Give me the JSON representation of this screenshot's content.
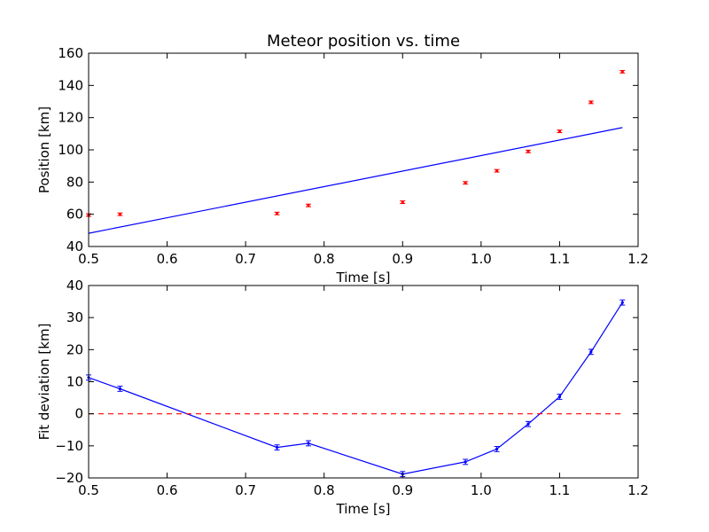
{
  "chart_data": [
    {
      "type": "scatter",
      "title": "Meteor position vs. time",
      "xlabel": "Time [s]",
      "ylabel": "Position [km]",
      "xlim": [
        0.5,
        1.2
      ],
      "ylim": [
        40,
        160
      ],
      "xticks": [
        "0.5",
        "0.6",
        "0.7",
        "0.8",
        "0.9",
        "1.0",
        "1.1",
        "1.2"
      ],
      "yticks": [
        "40",
        "60",
        "80",
        "100",
        "120",
        "140",
        "160"
      ],
      "grid": false,
      "series": [
        {
          "kind": "errorbar-points",
          "color": "#ff0000",
          "x": [
            0.5,
            0.54,
            0.74,
            0.78,
            0.9,
            0.98,
            1.02,
            1.06,
            1.1,
            1.14,
            1.18
          ],
          "y": [
            59.5,
            60,
            60.5,
            65.5,
            67.5,
            79.5,
            87,
            99,
            111.5,
            129.5,
            148.5
          ],
          "yerr": [
            0.8,
            0.8,
            0.8,
            0.8,
            0.8,
            0.8,
            0.8,
            0.8,
            0.8,
            0.8,
            0.8
          ]
        },
        {
          "kind": "line",
          "color": "#0000ff",
          "x": [
            0.5,
            1.18
          ],
          "y": [
            48.2,
            113.8
          ]
        }
      ]
    },
    {
      "type": "line",
      "title": "",
      "xlabel": "Time [s]",
      "ylabel": "Fit deviation [km]",
      "xlim": [
        0.5,
        1.2
      ],
      "ylim": [
        -20,
        40
      ],
      "xticks": [
        "0.5",
        "0.6",
        "0.7",
        "0.8",
        "0.9",
        "1.0",
        "1.1",
        "1.2"
      ],
      "yticks": [
        "−20",
        "−10",
        "0",
        "10",
        "20",
        "30",
        "40"
      ],
      "grid": false,
      "series": [
        {
          "kind": "errorbar-line",
          "color": "#0000ff",
          "x": [
            0.5,
            0.54,
            0.74,
            0.78,
            0.9,
            0.98,
            1.02,
            1.06,
            1.1,
            1.14,
            1.18
          ],
          "y": [
            11.3,
            7.8,
            -10.5,
            -9.2,
            -18.8,
            -15,
            -11,
            -3.2,
            5.3,
            19.3,
            34.7
          ],
          "yerr": [
            0.8,
            0.8,
            0.8,
            0.8,
            0.8,
            0.8,
            0.8,
            0.8,
            0.8,
            0.8,
            0.8
          ]
        },
        {
          "kind": "dashed-line",
          "color": "#ff0000",
          "x": [
            0.5,
            1.18
          ],
          "y": [
            0,
            0
          ]
        }
      ]
    }
  ]
}
